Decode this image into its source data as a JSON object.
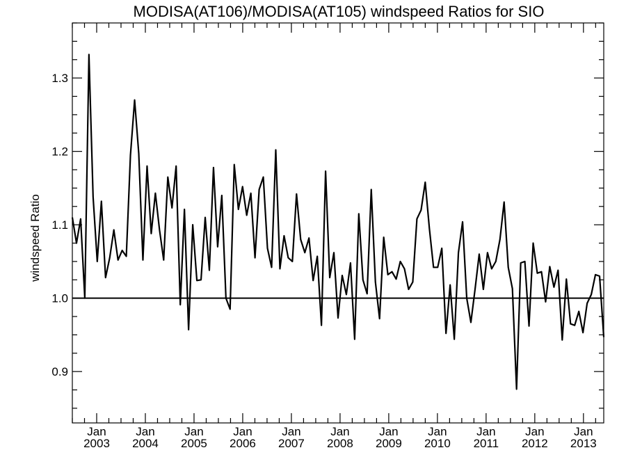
{
  "chart_data": {
    "type": "line",
    "title": "MODISA(AT106)/MODISA(AT105)  windspeed Ratios for SIO",
    "xlabel": "",
    "ylabel": "windspeed Ratio",
    "x_start": "2002-07",
    "x_end": "2013-06",
    "xlim": [
      "2002-07",
      "2013-06"
    ],
    "ylim": [
      0.83,
      1.375
    ],
    "yticks": [
      0.9,
      1.0,
      1.1,
      1.2,
      1.3
    ],
    "ytick_labels": [
      "0.9",
      "1.0",
      "1.1",
      "1.2",
      "1.3"
    ],
    "xticks": [
      {
        "month": "Jan",
        "year": "2003",
        "date": "2003-01"
      },
      {
        "month": "Jan",
        "year": "2004",
        "date": "2004-01"
      },
      {
        "month": "Jan",
        "year": "2005",
        "date": "2005-01"
      },
      {
        "month": "Jan",
        "year": "2006",
        "date": "2006-01"
      },
      {
        "month": "Jan",
        "year": "2007",
        "date": "2007-01"
      },
      {
        "month": "Jan",
        "year": "2008",
        "date": "2008-01"
      },
      {
        "month": "Jan",
        "year": "2009",
        "date": "2009-01"
      },
      {
        "month": "Jan",
        "year": "2010",
        "date": "2010-01"
      },
      {
        "month": "Jan",
        "year": "2011",
        "date": "2011-01"
      },
      {
        "month": "Jan",
        "year": "2012",
        "date": "2012-01"
      },
      {
        "month": "Jan",
        "year": "2013",
        "date": "2013-01"
      }
    ],
    "reference_line": 1.0,
    "grid": false,
    "legend": "none",
    "color": "#000000",
    "series": [
      {
        "values": [
          1.11,
          1.075,
          1.108,
          1.0,
          1.332,
          1.138,
          1.05,
          1.132,
          1.028,
          1.055,
          1.093,
          1.052,
          1.065,
          1.057,
          1.195,
          1.27,
          1.197,
          1.052,
          1.18,
          1.088,
          1.143,
          1.093,
          1.052,
          1.165,
          1.123,
          1.18,
          0.991,
          1.121,
          0.957,
          1.1,
          1.024,
          1.025,
          1.11,
          1.038,
          1.178,
          1.07,
          1.14,
          1.0,
          0.985,
          1.182,
          1.121,
          1.152,
          1.113,
          1.143,
          1.055,
          1.148,
          1.165,
          1.068,
          1.042,
          1.202,
          1.04,
          1.085,
          1.055,
          1.05,
          1.142,
          1.08,
          1.062,
          1.082,
          1.024,
          1.057,
          0.963,
          1.173,
          1.028,
          1.062,
          0.973,
          1.031,
          1.005,
          1.048,
          0.944,
          1.115,
          1.025,
          1.006,
          1.148,
          1.022,
          0.972,
          1.083,
          1.032,
          1.036,
          1.026,
          1.05,
          1.04,
          1.012,
          1.022,
          1.108,
          1.12,
          1.158,
          1.095,
          1.042,
          1.042,
          1.068,
          0.952,
          1.018,
          0.944,
          1.062,
          1.104,
          1.0,
          0.967,
          1.012,
          1.06,
          1.012,
          1.062,
          1.04,
          1.05,
          1.08,
          1.131,
          1.042,
          1.013,
          0.876,
          1.048,
          1.05,
          0.962,
          1.075,
          1.034,
          1.036,
          0.995,
          1.043,
          1.015,
          1.038,
          0.943,
          1.026,
          0.965,
          0.963,
          0.982,
          0.953,
          0.993,
          1.005,
          1.032,
          1.03,
          0.947
        ]
      }
    ]
  }
}
